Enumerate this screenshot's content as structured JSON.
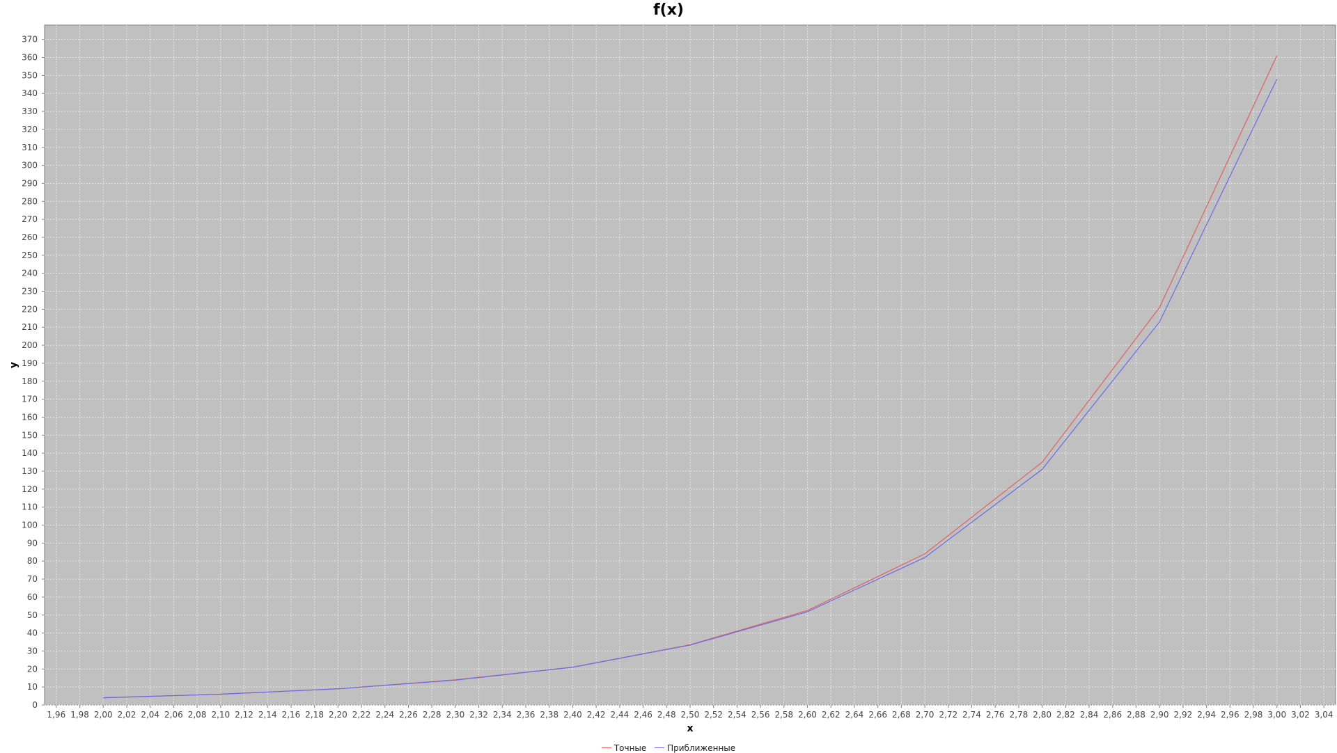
{
  "chart_data": {
    "type": "line",
    "title": "f(x)",
    "xlabel": "x",
    "ylabel": "y",
    "xlim": [
      1.95,
      3.05
    ],
    "ylim": [
      0,
      378
    ],
    "x_ticks": [
      "1,96",
      "1,98",
      "2,00",
      "2,02",
      "2,04",
      "2,06",
      "2,08",
      "2,10",
      "2,12",
      "2,14",
      "2,16",
      "2,18",
      "2,20",
      "2,22",
      "2,24",
      "2,26",
      "2,28",
      "2,30",
      "2,32",
      "2,34",
      "2,36",
      "2,38",
      "2,40",
      "2,42",
      "2,44",
      "2,46",
      "2,48",
      "2,50",
      "2,52",
      "2,54",
      "2,56",
      "2,58",
      "2,60",
      "2,62",
      "2,64",
      "2,66",
      "2,68",
      "2,70",
      "2,72",
      "2,74",
      "2,76",
      "2,78",
      "2,80",
      "2,82",
      "2,84",
      "2,86",
      "2,88",
      "2,90",
      "2,92",
      "2,94",
      "2,96",
      "2,98",
      "3,00",
      "3,02",
      "3,04"
    ],
    "y_ticks": [
      "0",
      "10",
      "20",
      "30",
      "40",
      "50",
      "60",
      "70",
      "80",
      "90",
      "100",
      "110",
      "120",
      "130",
      "140",
      "150",
      "160",
      "170",
      "180",
      "190",
      "200",
      "210",
      "220",
      "230",
      "240",
      "250",
      "260",
      "270",
      "280",
      "290",
      "300",
      "310",
      "320",
      "330",
      "340",
      "350",
      "360",
      "370"
    ],
    "grid": true,
    "legend_position": "bottom",
    "x": [
      2.0,
      2.1,
      2.2,
      2.3,
      2.4,
      2.5,
      2.6,
      2.7,
      2.8,
      2.9,
      3.0
    ],
    "series": [
      {
        "name": "Точные",
        "color": "#e06060",
        "values": [
          4,
          6,
          9,
          14,
          21,
          33.5,
          52.5,
          84,
          135,
          221,
          361
        ]
      },
      {
        "name": "Приближенные",
        "color": "#6a6ae8",
        "values": [
          4,
          6,
          9,
          13.8,
          21,
          33.3,
          51.8,
          82,
          131,
          213,
          348
        ]
      }
    ]
  }
}
